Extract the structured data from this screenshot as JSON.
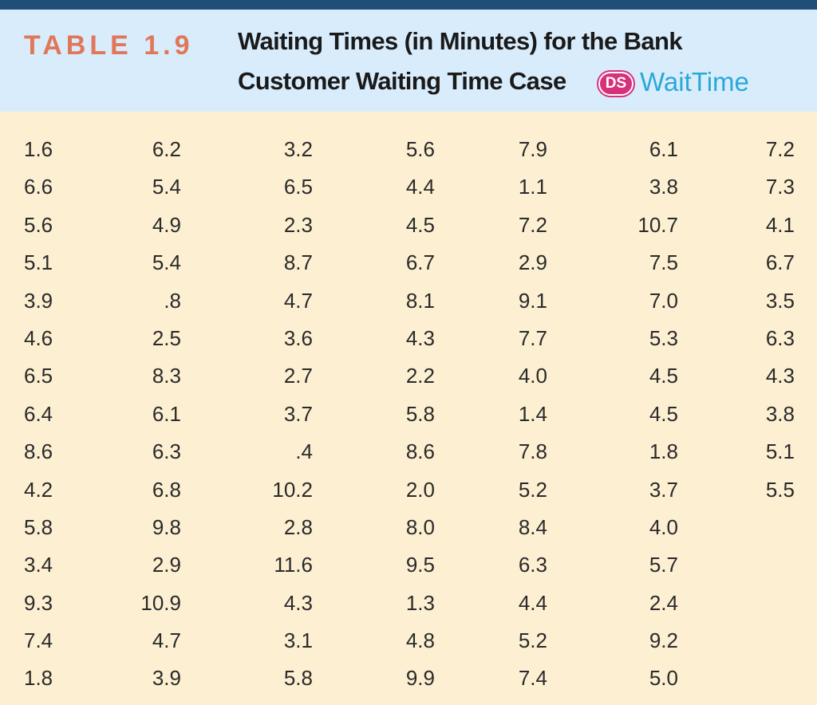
{
  "header": {
    "table_label": "TABLE 1.9",
    "title_line1": "Waiting Times (in Minutes) for the Bank",
    "title_line2": "Customer Waiting Time Case",
    "badge": "DS",
    "dataset": "WaitTime"
  },
  "colors": {
    "top_bar": "#1f4e79",
    "header_bg": "#d9ecfb",
    "body_bg": "#fdf0d2",
    "table_label": "#e0775a",
    "badge": "#d6317a",
    "dataset": "#2aa8d8"
  },
  "columns": [
    [
      "1.6",
      "6.6",
      "5.6",
      "5.1",
      "3.9",
      "4.6",
      "6.5",
      "6.4",
      "8.6",
      "4.2",
      "5.8",
      "3.4",
      "9.3",
      "7.4",
      "1.8"
    ],
    [
      "6.2",
      "5.4",
      "4.9",
      "5.4",
      ".8",
      "2.5",
      "8.3",
      "6.1",
      "6.3",
      "6.8",
      "9.8",
      "2.9",
      "10.9",
      "4.7",
      "3.9"
    ],
    [
      "3.2",
      "6.5",
      "2.3",
      "8.7",
      "4.7",
      "3.6",
      "2.7",
      "3.7",
      ".4",
      "10.2",
      "2.8",
      "11.6",
      "4.3",
      "3.1",
      "5.8"
    ],
    [
      "5.6",
      "4.4",
      "4.5",
      "6.7",
      "8.1",
      "4.3",
      "2.2",
      "5.8",
      "8.6",
      "2.0",
      "8.0",
      "9.5",
      "1.3",
      "4.8",
      "9.9"
    ],
    [
      "7.9",
      "1.1",
      "7.2",
      "2.9",
      "9.1",
      "7.7",
      "4.0",
      "1.4",
      "7.8",
      "5.2",
      "8.4",
      "6.3",
      "4.4",
      "5.2",
      "7.4"
    ],
    [
      "6.1",
      "3.8",
      "10.7",
      "7.5",
      "7.0",
      "5.3",
      "4.5",
      "4.5",
      "1.8",
      "3.7",
      "4.0",
      "5.7",
      "2.4",
      "9.2",
      "5.0"
    ],
    [
      "7.2",
      "7.3",
      "4.1",
      "6.7",
      "3.5",
      "6.3",
      "4.3",
      "3.8",
      "5.1",
      "5.5"
    ]
  ]
}
